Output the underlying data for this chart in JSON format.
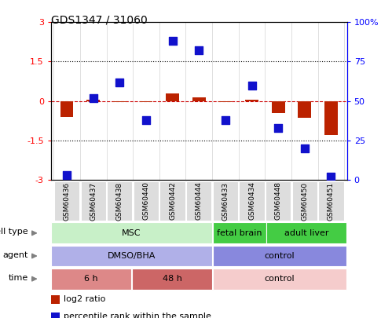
{
  "title": "GDS1347 / 31060",
  "samples": [
    "GSM60436",
    "GSM60437",
    "GSM60438",
    "GSM60440",
    "GSM60442",
    "GSM60444",
    "GSM60433",
    "GSM60434",
    "GSM60448",
    "GSM60450",
    "GSM60451"
  ],
  "log2_ratio": [
    -0.6,
    0.05,
    -0.03,
    -0.04,
    0.28,
    0.15,
    -0.04,
    0.05,
    -0.45,
    -0.65,
    -1.3
  ],
  "percentile_rank": [
    3,
    52,
    62,
    38,
    88,
    82,
    38,
    60,
    33,
    20,
    2
  ],
  "ylim_left": [
    -3,
    3
  ],
  "ylim_right": [
    0,
    100
  ],
  "yticks_left": [
    -3,
    -1.5,
    0,
    1.5,
    3
  ],
  "ytick_labels_left": [
    "-3",
    "-1.5",
    "0",
    "1.5",
    "3"
  ],
  "yticks_right": [
    0,
    25,
    50,
    75,
    100
  ],
  "ytick_labels_right": [
    "0",
    "25",
    "50",
    "75",
    "100%"
  ],
  "hlines": [
    1.5,
    -1.5
  ],
  "bar_color": "#bb2200",
  "dot_color": "#1111cc",
  "cell_types": [
    {
      "label": "MSC",
      "start": 0,
      "end": 6,
      "color": "#c8f0c8"
    },
    {
      "label": "fetal brain",
      "start": 6,
      "end": 8,
      "color": "#44cc44"
    },
    {
      "label": "adult liver",
      "start": 8,
      "end": 11,
      "color": "#44cc44"
    }
  ],
  "agents": [
    {
      "label": "DMSO/BHA",
      "start": 0,
      "end": 6,
      "color": "#b0b0e8"
    },
    {
      "label": "control",
      "start": 6,
      "end": 11,
      "color": "#8888dd"
    }
  ],
  "times": [
    {
      "label": "6 h",
      "start": 0,
      "end": 3,
      "color": "#dd8888"
    },
    {
      "label": "48 h",
      "start": 3,
      "end": 6,
      "color": "#cc6666"
    },
    {
      "label": "control",
      "start": 6,
      "end": 11,
      "color": "#f5cccc"
    }
  ],
  "row_labels": [
    "cell type",
    "agent",
    "time"
  ],
  "legend_items": [
    {
      "color": "#bb2200",
      "label": "log2 ratio"
    },
    {
      "color": "#1111cc",
      "label": "percentile rank within the sample"
    }
  ],
  "bar_width": 0.5,
  "background_color": "#ffffff",
  "zero_line_color": "#cc0000",
  "dotted_line_color": "#000000"
}
